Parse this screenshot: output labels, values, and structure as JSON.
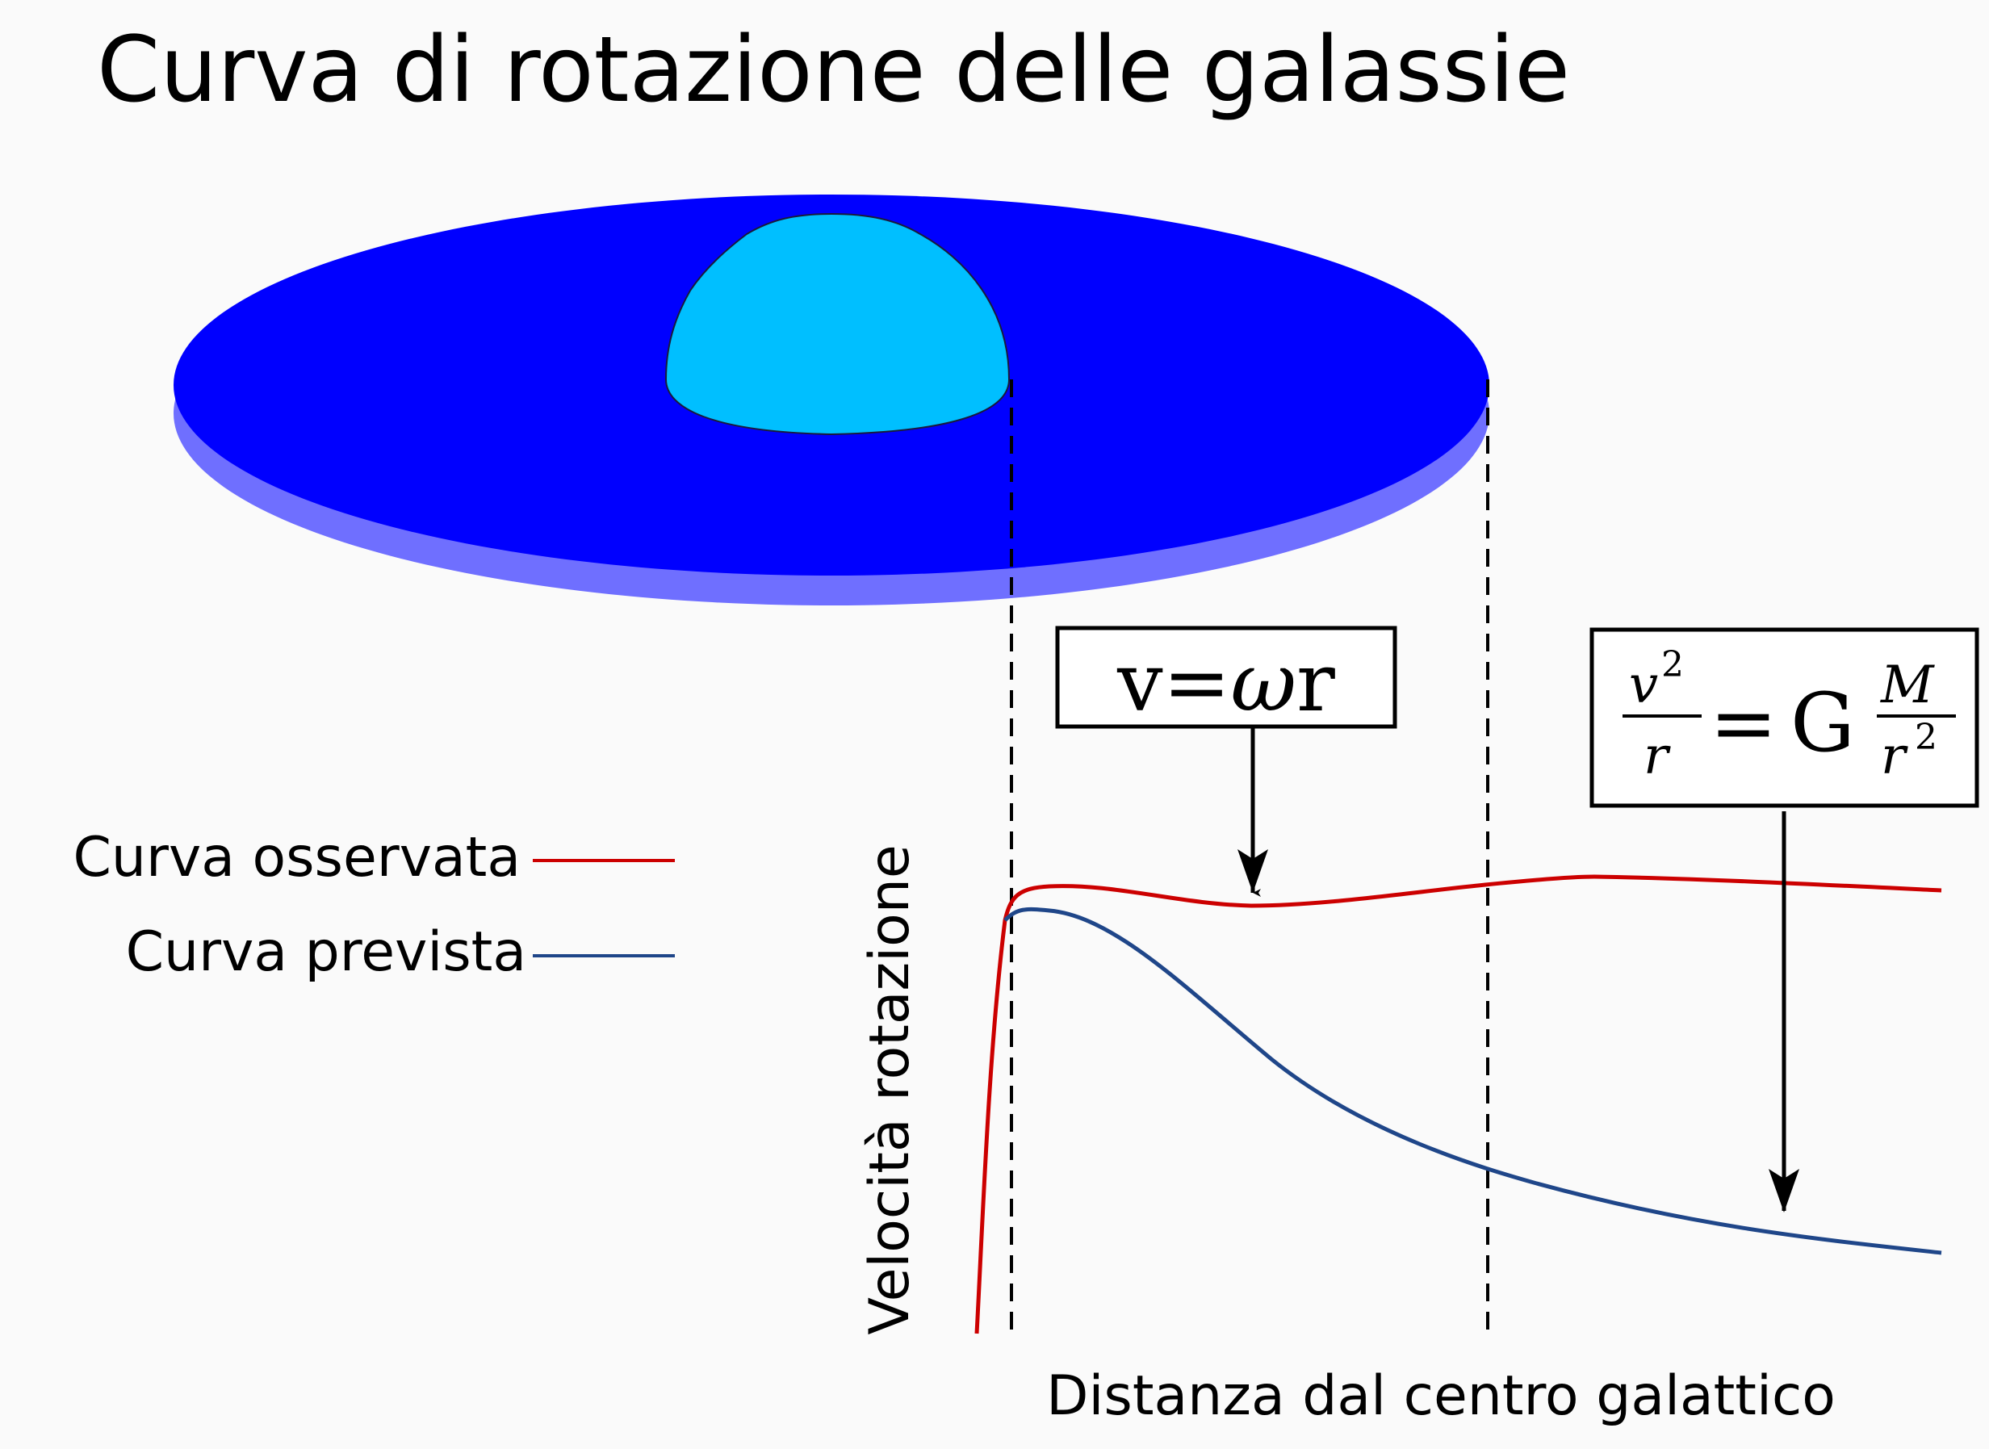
{
  "title": "Curva di rotazione delle galassie",
  "legend": {
    "observed_label": "Curva osservata",
    "predicted_label": "Curva prevista"
  },
  "axes": {
    "y_label": "Velocità rotazione",
    "x_label": "Distanza dal centro galattico"
  },
  "formula_left": {
    "v": "v",
    "equals": "=",
    "omega": "ω",
    "r": "r"
  },
  "formula_right": {
    "v": "v",
    "v_exp": "2",
    "r": "r",
    "equals": "=",
    "G": "G",
    "M": "M",
    "r2": "r",
    "r2_exp": "2"
  },
  "colors": {
    "observed": "#cc0000",
    "predicted": "#1f4689",
    "disk": "#0000ff",
    "disk_edge": "#6f6fff",
    "bulge": "#00bfff"
  }
}
